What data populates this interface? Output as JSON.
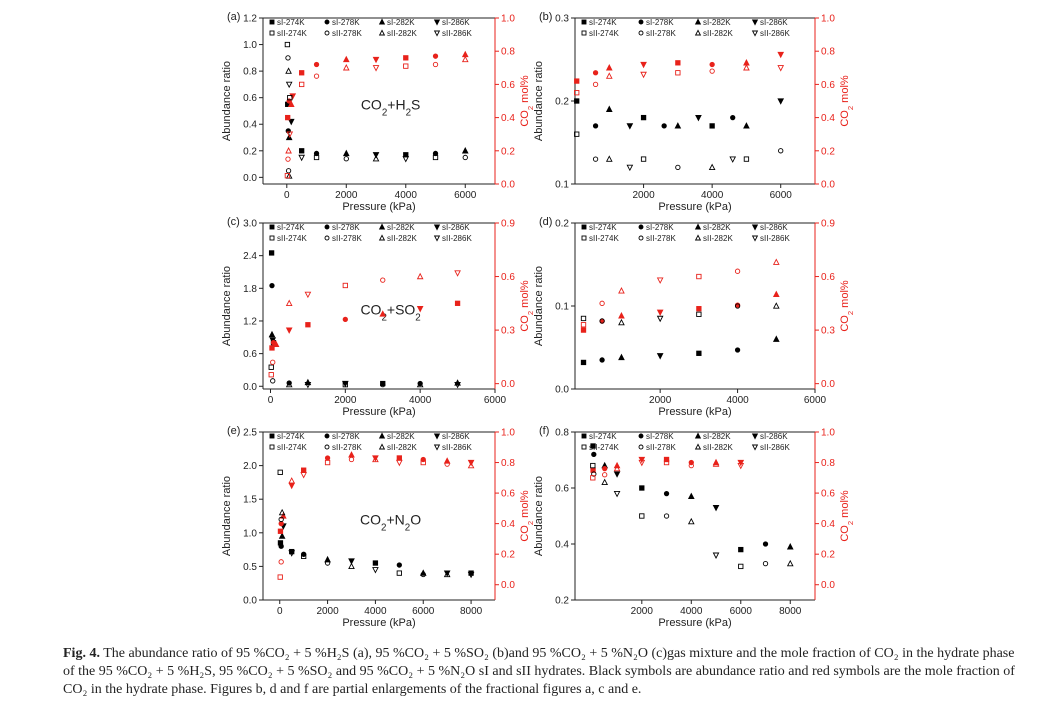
{
  "caption": {
    "label": "Fig. 4.",
    "text": "The abundance ratio of 95 %CO₂ + 5 %H₂S (a), 95 %CO₂ + 5 %SO₂ (b)and 95 %CO₂ + 5 %N₂O (c)gas mixture and the mole fraction of CO₂ in the hydrate phase of the 95 %CO₂ + 5 %H₂S, 95 %CO₂ + 5 %SO₂ and 95 %CO₂ + 5 %N₂O sI and sII hydrates. Black symbols are abundance ratio and red symbols are the mole fraction of CO₂ in the hydrate phase. Figures b, d and f are partial enlargements of the fractional figures a, c and e."
  },
  "colors": {
    "abundance": "#000000",
    "mole_fraction": "#e8221b",
    "frame": "#222222"
  },
  "legend": {
    "sI": [
      "sI-274K",
      "sI-278K",
      "sI-282K",
      "sI-286K"
    ],
    "sII": [
      "sII-274K",
      "sII-278K",
      "sII-282K",
      "sII-286K"
    ]
  },
  "chart_data": [
    {
      "panel": "(a)",
      "type": "scatter",
      "annotation": "CO2+H2S",
      "xlabel": "Pressure (kPa)",
      "ylabel": "Abundance ratio",
      "y2label": "CO2 mol%",
      "xlim": [
        -800,
        7000
      ],
      "ylim": [
        -0.05,
        1.2
      ],
      "y2lim": [
        0.0,
        1.0
      ],
      "xticks": [
        0,
        2000,
        4000,
        6000
      ],
      "yticks": [
        0.0,
        0.2,
        0.4,
        0.6,
        0.8,
        1.0,
        1.2
      ],
      "y2ticks": [
        0.0,
        0.2,
        0.4,
        0.6,
        0.8,
        1.0
      ],
      "abundance": {
        "sI": [
          [
            30,
            0.55
          ],
          [
            50,
            0.35
          ],
          [
            80,
            0.3
          ],
          [
            150,
            0.42
          ],
          [
            500,
            0.2
          ],
          [
            1000,
            0.18
          ],
          [
            2000,
            0.18
          ],
          [
            3000,
            0.17
          ],
          [
            4000,
            0.17
          ],
          [
            5000,
            0.18
          ],
          [
            6000,
            0.2
          ]
        ],
        "sII": [
          [
            20,
            1.0
          ],
          [
            40,
            0.9
          ],
          [
            60,
            0.8
          ],
          [
            80,
            0.7
          ],
          [
            100,
            0.6
          ],
          [
            60,
            0.05
          ],
          [
            80,
            0.01
          ],
          [
            500,
            0.15
          ],
          [
            1000,
            0.15
          ],
          [
            2000,
            0.14
          ],
          [
            3000,
            0.14
          ],
          [
            4000,
            0.14
          ],
          [
            5000,
            0.15
          ],
          [
            6000,
            0.15
          ]
        ]
      },
      "mole_fraction": {
        "sI": [
          [
            30,
            0.4
          ],
          [
            80,
            0.5
          ],
          [
            150,
            0.48
          ],
          [
            200,
            0.53
          ],
          [
            500,
            0.67
          ],
          [
            1000,
            0.72
          ],
          [
            2000,
            0.75
          ],
          [
            3000,
            0.75
          ],
          [
            4000,
            0.76
          ],
          [
            5000,
            0.77
          ],
          [
            6000,
            0.78
          ]
        ],
        "sII": [
          [
            20,
            0.05
          ],
          [
            40,
            0.15
          ],
          [
            60,
            0.2
          ],
          [
            100,
            0.3
          ],
          [
            500,
            0.6
          ],
          [
            1000,
            0.65
          ],
          [
            2000,
            0.7
          ],
          [
            3000,
            0.7
          ],
          [
            4000,
            0.71
          ],
          [
            5000,
            0.72
          ],
          [
            6000,
            0.75
          ]
        ]
      }
    },
    {
      "panel": "(b)",
      "type": "scatter",
      "xlabel": "Pressure (kPa)",
      "ylabel": "Abundance ratio",
      "y2label": "CO2 mol%",
      "xlim": [
        0,
        7000
      ],
      "ylim": [
        0.1,
        0.3
      ],
      "y2lim": [
        0.0,
        1.0
      ],
      "xticks": [
        2000,
        4000,
        6000
      ],
      "yticks": [
        0.1,
        0.2,
        0.3
      ],
      "y2ticks": [
        0.0,
        0.2,
        0.4,
        0.6,
        0.8,
        1.0
      ],
      "abundance": {
        "sI": [
          [
            50,
            0.2
          ],
          [
            600,
            0.17
          ],
          [
            1000,
            0.19
          ],
          [
            1600,
            0.17
          ],
          [
            2000,
            0.18
          ],
          [
            2600,
            0.17
          ],
          [
            3000,
            0.17
          ],
          [
            3600,
            0.18
          ],
          [
            4000,
            0.17
          ],
          [
            4600,
            0.18
          ],
          [
            5000,
            0.17
          ],
          [
            6000,
            0.2
          ]
        ],
        "sII": [
          [
            50,
            0.16
          ],
          [
            600,
            0.13
          ],
          [
            1000,
            0.13
          ],
          [
            1600,
            0.12
          ],
          [
            2000,
            0.13
          ],
          [
            3000,
            0.12
          ],
          [
            4000,
            0.12
          ],
          [
            4600,
            0.13
          ],
          [
            5000,
            0.13
          ],
          [
            6000,
            0.14
          ]
        ]
      },
      "mole_fraction": {
        "sI": [
          [
            50,
            0.62
          ],
          [
            600,
            0.67
          ],
          [
            1000,
            0.7
          ],
          [
            2000,
            0.72
          ],
          [
            3000,
            0.73
          ],
          [
            4000,
            0.72
          ],
          [
            5000,
            0.73
          ],
          [
            6000,
            0.78
          ]
        ],
        "sII": [
          [
            50,
            0.55
          ],
          [
            600,
            0.6
          ],
          [
            1000,
            0.65
          ],
          [
            2000,
            0.66
          ],
          [
            3000,
            0.67
          ],
          [
            4000,
            0.68
          ],
          [
            5000,
            0.7
          ],
          [
            6000,
            0.7
          ]
        ]
      }
    },
    {
      "panel": "(c)",
      "type": "scatter",
      "annotation": "CO2+SO2",
      "xlabel": "Pressure (kPa)",
      "ylabel": "Abundance ratio",
      "y2label": "CO2 mol%",
      "xlim": [
        -200,
        6000
      ],
      "ylim": [
        -0.05,
        3.0
      ],
      "y2lim": [
        -0.03,
        0.9
      ],
      "xticks": [
        0,
        2000,
        4000,
        6000
      ],
      "yticks": [
        0.0,
        0.6,
        1.2,
        1.8,
        2.4,
        3.0
      ],
      "y2ticks": [
        0.0,
        0.3,
        0.6,
        0.9
      ],
      "abundance": {
        "sI": [
          [
            30,
            2.45
          ],
          [
            40,
            1.85
          ],
          [
            40,
            0.95
          ],
          [
            60,
            0.85
          ],
          [
            80,
            0.8
          ],
          [
            500,
            0.06
          ],
          [
            1000,
            0.07
          ],
          [
            2000,
            0.05
          ],
          [
            3000,
            0.05
          ],
          [
            4000,
            0.05
          ],
          [
            5000,
            0.06
          ]
        ],
        "sII": [
          [
            20,
            0.35
          ],
          [
            60,
            0.1
          ],
          [
            500,
            0.03
          ],
          [
            1000,
            0.03
          ],
          [
            2000,
            0.03
          ],
          [
            3000,
            0.03
          ],
          [
            4000,
            0.03
          ],
          [
            5000,
            0.03
          ]
        ]
      },
      "mole_fraction": {
        "sI": [
          [
            40,
            0.2
          ],
          [
            80,
            0.23
          ],
          [
            150,
            0.22
          ],
          [
            500,
            0.3
          ],
          [
            1000,
            0.33
          ],
          [
            2000,
            0.36
          ],
          [
            3000,
            0.39
          ],
          [
            4000,
            0.42
          ],
          [
            5000,
            0.45
          ]
        ],
        "sII": [
          [
            20,
            0.05
          ],
          [
            60,
            0.12
          ],
          [
            500,
            0.45
          ],
          [
            1000,
            0.5
          ],
          [
            2000,
            0.55
          ],
          [
            3000,
            0.58
          ],
          [
            4000,
            0.6
          ],
          [
            5000,
            0.62
          ]
        ]
      }
    },
    {
      "panel": "(d)",
      "type": "scatter",
      "xlabel": "Pressure (kPa)",
      "ylabel": "Abundance ratio",
      "y2label": "CO2 mol%",
      "xlim": [
        -200,
        6000
      ],
      "ylim": [
        0.0,
        0.2
      ],
      "y2lim": [
        -0.03,
        0.9
      ],
      "xticks": [
        2000,
        4000,
        6000
      ],
      "yticks": [
        0.0,
        0.1,
        0.2
      ],
      "y2ticks": [
        0.0,
        0.3,
        0.6,
        0.9
      ],
      "abundance": {
        "sI": [
          [
            20,
            0.032
          ],
          [
            500,
            0.035
          ],
          [
            1000,
            0.038
          ],
          [
            2000,
            0.04
          ],
          [
            3000,
            0.043
          ],
          [
            4000,
            0.047
          ],
          [
            5000,
            0.06
          ]
        ],
        "sII": [
          [
            20,
            0.085
          ],
          [
            500,
            0.082
          ],
          [
            1000,
            0.08
          ],
          [
            2000,
            0.085
          ],
          [
            3000,
            0.09
          ],
          [
            4000,
            0.1
          ],
          [
            5000,
            0.1
          ]
        ]
      },
      "mole_fraction": {
        "sI": [
          [
            20,
            0.3
          ],
          [
            500,
            0.35
          ],
          [
            1000,
            0.38
          ],
          [
            2000,
            0.4
          ],
          [
            3000,
            0.42
          ],
          [
            4000,
            0.44
          ],
          [
            5000,
            0.5
          ]
        ],
        "sII": [
          [
            20,
            0.33
          ],
          [
            500,
            0.45
          ],
          [
            1000,
            0.52
          ],
          [
            2000,
            0.58
          ],
          [
            3000,
            0.6
          ],
          [
            4000,
            0.63
          ],
          [
            5000,
            0.68
          ]
        ]
      }
    },
    {
      "panel": "(e)",
      "type": "scatter",
      "annotation": "CO2+N2O",
      "xlabel": "Pressure (kPa)",
      "ylabel": "Abundance ratio",
      "y2label": "CO2 mol%",
      "xlim": [
        -700,
        9000
      ],
      "ylim": [
        0.0,
        2.5
      ],
      "y2lim": [
        -0.1,
        1.0
      ],
      "xticks": [
        0,
        2000,
        4000,
        6000,
        8000
      ],
      "yticks": [
        0.0,
        0.5,
        1.0,
        1.5,
        2.0,
        2.5
      ],
      "y2ticks": [
        0.0,
        0.2,
        0.4,
        0.6,
        0.8,
        1.0
      ],
      "abundance": {
        "sI": [
          [
            30,
            0.85
          ],
          [
            60,
            0.8
          ],
          [
            100,
            0.95
          ],
          [
            150,
            1.1
          ],
          [
            500,
            0.72
          ],
          [
            1000,
            0.68
          ],
          [
            2000,
            0.6
          ],
          [
            3000,
            0.58
          ],
          [
            4000,
            0.55
          ],
          [
            5000,
            0.52
          ],
          [
            6000,
            0.4
          ],
          [
            7000,
            0.4
          ],
          [
            8000,
            0.4
          ]
        ],
        "sII": [
          [
            20,
            1.9
          ],
          [
            60,
            1.2
          ],
          [
            100,
            1.3
          ],
          [
            500,
            0.7
          ],
          [
            1000,
            0.65
          ],
          [
            2000,
            0.55
          ],
          [
            3000,
            0.5
          ],
          [
            4000,
            0.45
          ],
          [
            5000,
            0.4
          ],
          [
            6000,
            0.38
          ],
          [
            7000,
            0.38
          ],
          [
            8000,
            0.38
          ]
        ]
      },
      "mole_fraction": {
        "sI": [
          [
            30,
            0.35
          ],
          [
            60,
            0.4
          ],
          [
            150,
            0.45
          ],
          [
            500,
            0.65
          ],
          [
            1000,
            0.75
          ],
          [
            2000,
            0.83
          ],
          [
            3000,
            0.85
          ],
          [
            4000,
            0.83
          ],
          [
            5000,
            0.83
          ],
          [
            6000,
            0.82
          ],
          [
            7000,
            0.81
          ],
          [
            8000,
            0.8
          ]
        ],
        "sII": [
          [
            20,
            0.05
          ],
          [
            60,
            0.15
          ],
          [
            500,
            0.68
          ],
          [
            1000,
            0.72
          ],
          [
            2000,
            0.8
          ],
          [
            3000,
            0.82
          ],
          [
            4000,
            0.82
          ],
          [
            5000,
            0.8
          ],
          [
            6000,
            0.8
          ],
          [
            7000,
            0.79
          ],
          [
            8000,
            0.78
          ]
        ]
      }
    },
    {
      "panel": "(f)",
      "type": "scatter",
      "xlabel": "Pressure (kPa)",
      "ylabel": "Abundance ratio",
      "y2label": "CO2 mol%",
      "xlim": [
        -700,
        9000
      ],
      "ylim": [
        0.2,
        0.8
      ],
      "y2lim": [
        -0.1,
        1.0
      ],
      "xticks": [
        2000,
        4000,
        6000,
        8000
      ],
      "yticks": [
        0.2,
        0.4,
        0.6,
        0.8
      ],
      "y2ticks": [
        0.0,
        0.2,
        0.4,
        0.6,
        0.8,
        1.0
      ],
      "abundance": {
        "sI": [
          [
            30,
            0.75
          ],
          [
            60,
            0.72
          ],
          [
            500,
            0.68
          ],
          [
            1000,
            0.65
          ],
          [
            2000,
            0.6
          ],
          [
            3000,
            0.58
          ],
          [
            4000,
            0.57
          ],
          [
            5000,
            0.53
          ],
          [
            6000,
            0.38
          ],
          [
            7000,
            0.4
          ],
          [
            8000,
            0.39
          ]
        ],
        "sII": [
          [
            20,
            0.68
          ],
          [
            60,
            0.65
          ],
          [
            500,
            0.62
          ],
          [
            1000,
            0.58
          ],
          [
            2000,
            0.5
          ],
          [
            3000,
            0.5
          ],
          [
            4000,
            0.48
          ],
          [
            5000,
            0.36
          ],
          [
            6000,
            0.32
          ],
          [
            7000,
            0.33
          ],
          [
            8000,
            0.33
          ]
        ]
      },
      "mole_fraction": {
        "sI": [
          [
            30,
            0.75
          ],
          [
            500,
            0.76
          ],
          [
            1000,
            0.78
          ],
          [
            2000,
            0.82
          ],
          [
            3000,
            0.82
          ],
          [
            4000,
            0.8
          ],
          [
            5000,
            0.8
          ],
          [
            6000,
            0.8
          ]
        ],
        "sII": [
          [
            20,
            0.7
          ],
          [
            500,
            0.72
          ],
          [
            1000,
            0.76
          ],
          [
            2000,
            0.8
          ],
          [
            3000,
            0.8
          ],
          [
            4000,
            0.78
          ],
          [
            5000,
            0.79
          ],
          [
            6000,
            0.78
          ]
        ]
      }
    }
  ]
}
